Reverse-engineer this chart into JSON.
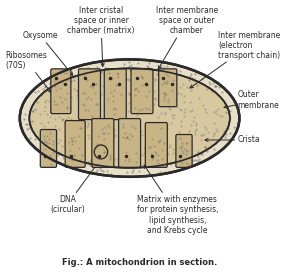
{
  "title": "Fig.: A mitochondrion in section.",
  "bg_color": "#ffffff",
  "outer_fill_color": "#e8dfc8",
  "matrix_fill_color": "#d8c8a0",
  "crista_fill_color": "#c8b485",
  "line_color": "#2a2a2a",
  "dot_color": "#6a6a6a",
  "labels": {
    "oxysome": "Oxysome",
    "ribosomes": "Ribosomes\n(70S)",
    "inter_cristal": "Inter cristal\nspace or inner\nchamber (matrix)",
    "inter_membrane_outer": "Inter membrane\nspace or outer\nchamber",
    "inter_membrane_inner": "Inter membrane\n(electron\ntransport chain)",
    "outer_membrane": "Outer\nmembrane",
    "crista": "Crista",
    "dna": "DNA\n(circular)",
    "matrix": "Matrix with enzymes\nfor protein synthesis,\nlipid synthesis,\nand Krebs cycle"
  },
  "figsize": [
    2.93,
    2.75
  ],
  "dpi": 100
}
